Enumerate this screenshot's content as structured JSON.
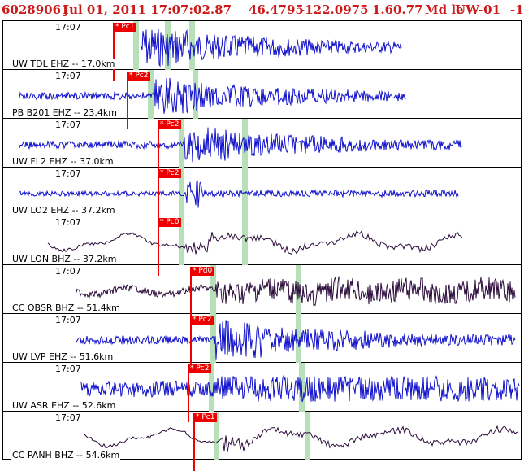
{
  "header": {
    "event_id": "60289061",
    "datetime": "Jul 01, 2011 17:07:02.87",
    "lat": "46.4795",
    "lon": "-122.0975",
    "depth": "1.6",
    "magnitude": "0.77",
    "mag_type": "Md le ---",
    "network": "UW 01",
    "flag": "-1"
  },
  "traces": [
    {
      "time": "17:07",
      "label": "UW TDL EHZ -- 17.0km",
      "pick": "* Pc1",
      "color": "#1010cc"
    },
    {
      "time": "17:07",
      "label": "PB B201 EHZ -- 23.4km",
      "pick": "* Pc2",
      "color": "#1010cc"
    },
    {
      "time": "17:07",
      "label": "UW FL2 EHZ -- 37.0km",
      "pick": "* Pc2",
      "color": "#1010cc"
    },
    {
      "time": "17:07",
      "label": "UW LO2 EHZ -- 37.2km",
      "pick": "* Pc2",
      "color": "#1010cc"
    },
    {
      "time": "17:07",
      "label": "UW LON BHZ -- 37.2km",
      "pick": "* Pc0",
      "color": "#2a0a3a"
    },
    {
      "time": "17:07",
      "label": "CC OBSR BHZ -- 51.4km",
      "pick": "* Pd0",
      "color": "#2a0a3a"
    },
    {
      "time": "17:07",
      "label": "UW LVP EHZ -- 51.6km",
      "pick": "* Pc2",
      "color": "#1010cc"
    },
    {
      "time": "17:07",
      "label": "UW ASR EHZ -- 52.6km",
      "pick": "* Pc2",
      "color": "#1010cc"
    },
    {
      "time": "17:07",
      "label": "CC PANH BHZ -- 54.6km",
      "pick": "* Pc1",
      "color": "#2a0a3a"
    }
  ]
}
